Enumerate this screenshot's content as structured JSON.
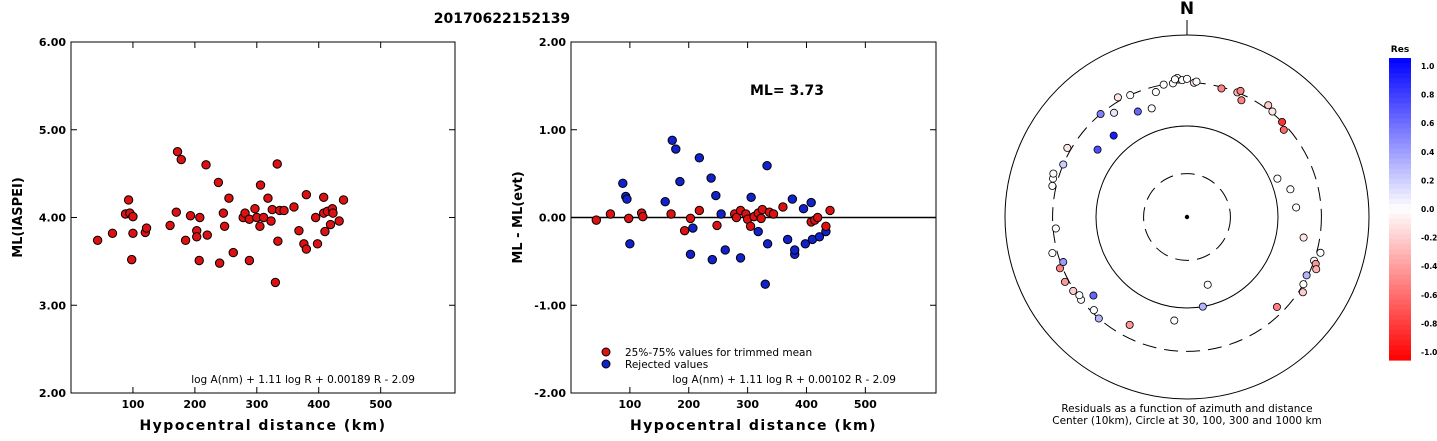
{
  "title": "20170622152139",
  "chart_data": [
    {
      "type": "scatter",
      "name": "ml-vs-distance",
      "ylabel": "ML(IASPEI)",
      "xlabel": "Hypocentral distance (km)",
      "xlim": [
        0,
        620
      ],
      "ylim": [
        2.0,
        6.0
      ],
      "xticks": [
        100,
        200,
        300,
        400,
        500
      ],
      "yticks": [
        2.0,
        3.0,
        4.0,
        5.0,
        6.0
      ],
      "ytick_labels": [
        "2.00",
        "3.00",
        "4.00",
        "5.00",
        "6.00"
      ],
      "formula": "log A(nm) + 1.11 log R + 0.00189 R - 2.09",
      "color": "#dd1111",
      "points": [
        [
          43,
          3.74
        ],
        [
          67,
          3.82
        ],
        [
          88,
          4.04
        ],
        [
          93,
          4.2
        ],
        [
          95,
          4.05
        ],
        [
          98,
          3.52
        ],
        [
          100,
          4.01
        ],
        [
          100,
          3.82
        ],
        [
          120,
          3.83
        ],
        [
          122,
          3.88
        ],
        [
          160,
          3.91
        ],
        [
          170,
          4.06
        ],
        [
          172,
          4.75
        ],
        [
          178,
          4.66
        ],
        [
          185,
          3.74
        ],
        [
          193,
          4.02
        ],
        [
          203,
          3.85
        ],
        [
          203,
          3.78
        ],
        [
          207,
          3.51
        ],
        [
          208,
          4.0
        ],
        [
          218,
          4.6
        ],
        [
          220,
          3.8
        ],
        [
          238,
          4.4
        ],
        [
          240,
          3.48
        ],
        [
          246,
          4.05
        ],
        [
          248,
          3.9
        ],
        [
          255,
          4.22
        ],
        [
          262,
          3.6
        ],
        [
          278,
          4.0
        ],
        [
          281,
          4.05
        ],
        [
          288,
          3.98
        ],
        [
          288,
          3.51
        ],
        [
          297,
          4.1
        ],
        [
          300,
          4.0
        ],
        [
          305,
          3.9
        ],
        [
          306,
          4.37
        ],
        [
          311,
          4.0
        ],
        [
          318,
          4.22
        ],
        [
          323,
          3.96
        ],
        [
          325,
          4.09
        ],
        [
          330,
          3.26
        ],
        [
          333,
          4.61
        ],
        [
          334,
          3.73
        ],
        [
          337,
          4.08
        ],
        [
          344,
          4.08
        ],
        [
          360,
          4.12
        ],
        [
          368,
          3.85
        ],
        [
          376,
          3.7
        ],
        [
          380,
          3.64
        ],
        [
          380,
          4.26
        ],
        [
          395,
          4.0
        ],
        [
          398,
          3.7
        ],
        [
          408,
          4.05
        ],
        [
          408,
          4.23
        ],
        [
          410,
          3.84
        ],
        [
          414,
          4.07
        ],
        [
          419,
          3.92
        ],
        [
          422,
          4.1
        ],
        [
          423,
          4.05
        ],
        [
          433,
          3.96
        ],
        [
          440,
          4.2
        ]
      ]
    },
    {
      "type": "scatter",
      "name": "residual-vs-distance",
      "ylabel": "ML - ML(evt)",
      "xlabel": "Hypocentral distance (km)",
      "xlim": [
        0,
        620
      ],
      "ylim": [
        -2.0,
        2.0
      ],
      "xticks": [
        100,
        200,
        300,
        400,
        500
      ],
      "yticks": [
        -2.0,
        -1.0,
        0.0,
        1.0,
        2.0
      ],
      "ytick_labels": [
        "-2.00",
        "-1.00",
        "0.00",
        "1.00",
        "2.00"
      ],
      "ml_label": "ML= 3.73",
      "formula": "log A(nm) + 1.11 log R + 0.00102 R - 2.09",
      "legend": [
        {
          "label": "25%-75% values for trimmed mean",
          "color": "#dd1111"
        },
        {
          "label": "Rejected values",
          "color": "#1122cc"
        }
      ],
      "trimmed": [
        [
          43,
          -0.03
        ],
        [
          67,
          0.04
        ],
        [
          98,
          -0.01
        ],
        [
          120,
          0.05
        ],
        [
          122,
          0.01
        ],
        [
          170,
          0.04
        ],
        [
          193,
          -0.15
        ],
        [
          203,
          -0.01
        ],
        [
          218,
          0.08
        ],
        [
          248,
          -0.09
        ],
        [
          278,
          0.04
        ],
        [
          281,
          0.0
        ],
        [
          288,
          0.08
        ],
        [
          297,
          0.04
        ],
        [
          300,
          -0.02
        ],
        [
          305,
          -0.1
        ],
        [
          311,
          0.01
        ],
        [
          318,
          0.05
        ],
        [
          323,
          -0.01
        ],
        [
          325,
          0.09
        ],
        [
          337,
          0.06
        ],
        [
          344,
          0.04
        ],
        [
          360,
          0.12
        ],
        [
          408,
          -0.05
        ],
        [
          414,
          -0.03
        ],
        [
          419,
          0.0
        ],
        [
          433,
          -0.1
        ],
        [
          440,
          0.08
        ]
      ],
      "rejected": [
        [
          88,
          0.39
        ],
        [
          93,
          0.24
        ],
        [
          95,
          0.21
        ],
        [
          100,
          -0.3
        ],
        [
          160,
          0.18
        ],
        [
          172,
          0.88
        ],
        [
          178,
          0.78
        ],
        [
          185,
          0.41
        ],
        [
          203,
          -0.42
        ],
        [
          207,
          -0.12
        ],
        [
          218,
          0.68
        ],
        [
          238,
          0.45
        ],
        [
          240,
          -0.48
        ],
        [
          246,
          0.25
        ],
        [
          255,
          0.04
        ],
        [
          262,
          -0.37
        ],
        [
          288,
          -0.46
        ],
        [
          306,
          0.23
        ],
        [
          318,
          -0.16
        ],
        [
          330,
          -0.76
        ],
        [
          333,
          0.59
        ],
        [
          334,
          -0.3
        ],
        [
          368,
          -0.25
        ],
        [
          376,
          0.21
        ],
        [
          380,
          -0.42
        ],
        [
          380,
          -0.37
        ],
        [
          395,
          0.1
        ],
        [
          398,
          -0.3
        ],
        [
          408,
          0.17
        ],
        [
          410,
          -0.25
        ],
        [
          422,
          -0.22
        ],
        [
          433,
          -0.16
        ]
      ]
    },
    {
      "type": "polar-scatter",
      "name": "azimuth-residuals",
      "north_label": "N",
      "caption_line1": "Residuals as a function of azimuth and distance",
      "caption_line2": "Center (10km), Circle at 30, 100, 300 and 1000 km",
      "colorbar_title": "Res",
      "colorbar_ticks": [
        "1.0",
        "0.8",
        "0.6",
        "0.4",
        "0.2",
        "0.0",
        "-0.2",
        "-0.4",
        "-0.6",
        "-0.8",
        "-1.0"
      ],
      "stations": [
        [
          -6,
          300,
          0.0
        ],
        [
          -4,
          340,
          0.0
        ],
        [
          -2,
          320,
          0.0
        ],
        [
          0,
          330,
          0.0
        ],
        [
          3,
          300,
          -0.1
        ],
        [
          4,
          310,
          0.0
        ],
        [
          15,
          290,
          -0.5
        ],
        [
          22,
          300,
          -0.3
        ],
        [
          23,
          320,
          -0.5
        ],
        [
          25,
          260,
          -0.5
        ],
        [
          36,
          330,
          -0.2
        ],
        [
          39,
          310,
          -0.1
        ],
        [
          45,
          300,
          -0.8
        ],
        [
          48,
          270,
          -0.6
        ],
        [
          67,
          120,
          0.0
        ],
        [
          75,
          150,
          0.0
        ],
        [
          85,
          160,
          0.0
        ],
        [
          100,
          200,
          -0.1
        ],
        [
          105,
          330,
          0.0
        ],
        [
          109,
          300,
          0.0
        ],
        [
          110,
          320,
          -0.4
        ],
        [
          112,
          340,
          -0.3
        ],
        [
          116,
          290,
          0.3
        ],
        [
          120,
          300,
          0.0
        ],
        [
          123,
          330,
          -0.2
        ],
        [
          135,
          250,
          -0.5
        ],
        [
          163,
          60,
          0.0
        ],
        [
          170,
          100,
          0.3
        ],
        [
          187,
          140,
          0.0
        ],
        [
          208,
          220,
          -0.4
        ],
        [
          221,
          300,
          0.3
        ],
        [
          225,
          280,
          0.0
        ],
        [
          230,
          220,
          0.6
        ],
        [
          232,
          300,
          0.0
        ],
        [
          234,
          290,
          0.0
        ],
        [
          237,
          310,
          -0.2
        ],
        [
          242,
          330,
          -0.4
        ],
        [
          248,
          320,
          -0.5
        ],
        [
          250,
          280,
          0.4
        ],
        [
          255,
          340,
          0.0
        ],
        [
          265,
          280,
          0.0
        ],
        [
          283,
          330,
          0.0
        ],
        [
          286,
          340,
          0.0
        ],
        [
          288,
          350,
          0.0
        ],
        [
          293,
          300,
          0.2
        ],
        [
          300,
          330,
          -0.1
        ],
        [
          307,
          170,
          0.7
        ],
        [
          318,
          160,
          0.9
        ],
        [
          320,
          300,
          0.5
        ],
        [
          325,
          250,
          0.1
        ],
        [
          330,
          330,
          -0.1
        ],
        [
          335,
          300,
          0.0
        ],
        [
          342,
          180,
          0.0
        ],
        [
          346,
          260,
          0.0
        ],
        [
          350,
          300,
          0.0
        ],
        [
          355,
          330,
          0.0
        ],
        [
          335,
          190,
          0.6
        ]
      ]
    }
  ]
}
